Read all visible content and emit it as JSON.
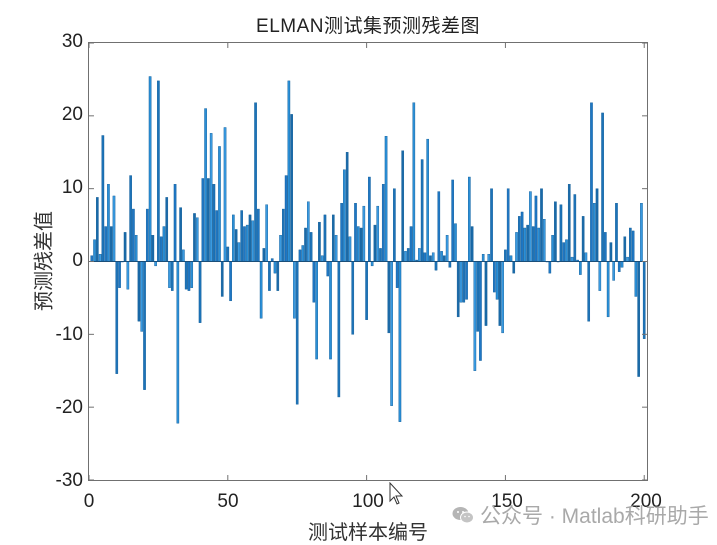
{
  "chart_data": {
    "type": "bar",
    "title": "ELMAN测试集预测残差图",
    "xlabel": "测试样本编号",
    "ylabel": "预测残差值",
    "xlim": [
      0,
      201
    ],
    "ylim": [
      -30,
      30
    ],
    "xticks": [
      0,
      50,
      100,
      150,
      200
    ],
    "yticks": [
      -30,
      -20,
      -10,
      0,
      10,
      20,
      30
    ],
    "grid": false,
    "legend": null,
    "bar_color": "#1f77c4",
    "x": "1..200",
    "values": [
      0.8,
      3.0,
      8.8,
      1.0,
      17.3,
      4.8,
      10.6,
      4.8,
      9.0,
      -15.4,
      -3.6,
      0.0,
      4.0,
      -3.8,
      11.8,
      7.2,
      3.6,
      -8.2,
      -9.6,
      -17.6,
      7.2,
      25.4,
      3.6,
      -0.6,
      24.8,
      3.4,
      4.8,
      8.8,
      -3.6,
      -4.0,
      10.6,
      -22.2,
      7.4,
      1.6,
      -3.8,
      -4.0,
      -3.6,
      6.6,
      6.0,
      -8.4,
      11.4,
      21.0,
      11.4,
      17.6,
      10.6,
      7.0,
      15.8,
      -4.8,
      18.4,
      2.0,
      -5.4,
      6.4,
      4.4,
      2.6,
      7.0,
      4.8,
      5.0,
      6.4,
      5.6,
      21.8,
      7.2,
      -7.8,
      1.8,
      7.8,
      -4.0,
      0.4,
      -1.6,
      -4.0,
      3.6,
      7.2,
      11.8,
      24.8,
      20.2,
      -7.8,
      -19.6,
      1.6,
      2.2,
      4.6,
      8.2,
      4.0,
      -5.6,
      -13.4,
      5.4,
      0.8,
      6.4,
      -2.0,
      -13.4,
      6.4,
      3.6,
      -18.6,
      8.0,
      12.6,
      15.0,
      3.4,
      -10.0,
      8.0,
      4.8,
      4.6,
      7.6,
      -8.0,
      11.6,
      -0.6,
      5.0,
      7.6,
      1.8,
      10.6,
      17.2,
      -9.8,
      -19.8,
      10.0,
      -3.6,
      -22.0,
      15.2,
      1.4,
      1.8,
      4.8,
      21.8,
      0.2,
      1.8,
      14.0,
      1.2,
      16.8,
      0.8,
      1.2,
      -1.2,
      9.6,
      1.4,
      0.8,
      3.6,
      -0.8,
      11.2,
      5.2,
      -7.6,
      -5.6,
      -5.6,
      -5.2,
      11.6,
      4.8,
      -15.0,
      -9.6,
      -13.6,
      1.0,
      -8.8,
      1.0,
      10.0,
      -4.2,
      -5.2,
      -8.8,
      -9.8,
      1.6,
      10.0,
      0.8,
      -1.6,
      4.0,
      6.2,
      6.8,
      4.6,
      5.0,
      9.6,
      4.8,
      9.0,
      4.6,
      10.0,
      5.8,
      0.0,
      -1.6,
      3.6,
      8.2,
      0.0,
      7.8,
      2.6,
      3.0,
      10.6,
      0.6,
      9.2,
      0.2,
      -1.8,
      6.2,
      1.2,
      -8.2,
      21.8,
      8.0,
      10.0,
      -4.0,
      20.4,
      4.0,
      -7.6,
      2.6,
      -2.6,
      8.0,
      -1.4,
      -0.8,
      3.4,
      0.6,
      4.6,
      4.2,
      -4.8,
      -15.8,
      8.0,
      -10.6
    ]
  },
  "figure": {
    "title": "ELMAN测试集预测残差图",
    "xlabel": "测试样本编号",
    "ylabel": "预测残差值",
    "yticks": [
      "30",
      "20",
      "10",
      "0",
      "-10",
      "-20",
      "-30"
    ],
    "xticks": [
      "0",
      "50",
      "100",
      "150",
      "200"
    ]
  },
  "watermark": {
    "icon": "wechat-icon",
    "text": "公众号 · Matlab科研助手"
  }
}
